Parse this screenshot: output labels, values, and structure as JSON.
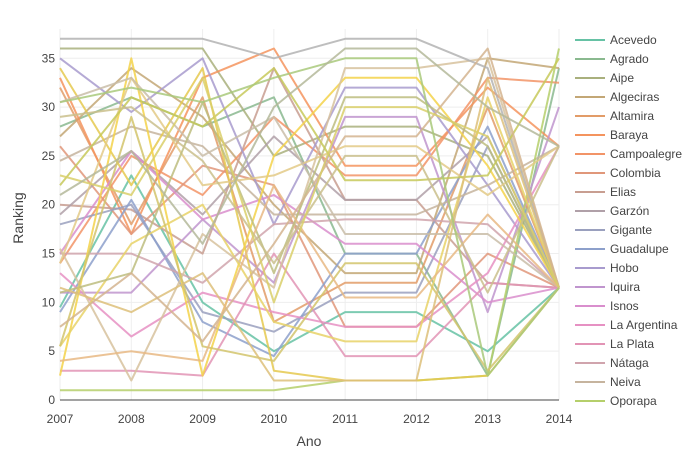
{
  "chart_data": {
    "type": "line",
    "xlabel": "Ano",
    "ylabel": "Ranking",
    "x": [
      2007,
      2008,
      2009,
      2010,
      2011,
      2012,
      2013,
      2014
    ],
    "xlim": [
      2007,
      2014
    ],
    "ylim": [
      0,
      38
    ],
    "yticks": [
      0,
      5,
      10,
      15,
      20,
      25,
      30,
      35
    ],
    "grid": true,
    "legend_position": "right",
    "series": [
      {
        "name": "Acevedo",
        "color": "#66c2a5",
        "values": [
          9.5,
          23,
          10,
          5,
          9,
          9,
          5,
          11.5
        ]
      },
      {
        "name": "Agrado",
        "color": "#8ab98f",
        "values": [
          28,
          31,
          28,
          31,
          15,
          15,
          2.5,
          34
        ]
      },
      {
        "name": "Aipe",
        "color": "#a9b07d",
        "values": [
          36,
          36,
          36,
          25,
          28,
          28,
          25,
          11.5
        ]
      },
      {
        "name": "Algeciras",
        "color": "#c3a776",
        "values": [
          27,
          34,
          29,
          20,
          13,
          13,
          35,
          34
        ]
      },
      {
        "name": "Altamira",
        "color": "#e29c68",
        "values": [
          32,
          18,
          31,
          8,
          12,
          12,
          30,
          11.5
        ]
      },
      {
        "name": "Baraya",
        "color": "#f4945e",
        "values": [
          33,
          17,
          33,
          36,
          24,
          24,
          32,
          26
        ]
      },
      {
        "name": "Campoalegre",
        "color": "#f29467",
        "values": [
          14,
          25,
          21,
          29,
          23,
          23,
          33,
          32.5
        ]
      },
      {
        "name": "Colombia",
        "color": "#e0977a",
        "values": [
          26,
          17,
          24,
          22,
          7.5,
          7.5,
          15,
          11.5
        ]
      },
      {
        "name": "Elias",
        "color": "#c89e91",
        "values": [
          20,
          19.5,
          15,
          34,
          20.5,
          20.5,
          12,
          11.5
        ]
      },
      {
        "name": "Garzón",
        "color": "#b0a0a8",
        "values": [
          19,
          25.5,
          19,
          27,
          20.5,
          20.5,
          27,
          11.5
        ]
      },
      {
        "name": "Gigante",
        "color": "#9aa0be",
        "values": [
          18,
          20,
          9,
          7,
          11,
          11,
          26,
          11.5
        ]
      },
      {
        "name": "Guadalupe",
        "color": "#8da0cb",
        "values": [
          9,
          20.5,
          8,
          4.5,
          15,
          15,
          28,
          11.5
        ]
      },
      {
        "name": "Hobo",
        "color": "#a89bce",
        "values": [
          35,
          29.5,
          35,
          18,
          32,
          32,
          22,
          11.5
        ]
      },
      {
        "name": "Iquira",
        "color": "#c095ce",
        "values": [
          11,
          11,
          18.5,
          12,
          29,
          29,
          9,
          30
        ]
      },
      {
        "name": "Isnos",
        "color": "#d98ecd",
        "values": [
          15,
          25.5,
          18.5,
          21,
          16,
          16,
          10,
          11.5
        ]
      },
      {
        "name": "La Argentina",
        "color": "#e691c3",
        "values": [
          13,
          6.5,
          11,
          9,
          7.5,
          7.5,
          13,
          26
        ]
      },
      {
        "name": "La Plata",
        "color": "#e294b5",
        "values": [
          3,
          3,
          2.5,
          15,
          4.5,
          4.5,
          12,
          11.5
        ]
      },
      {
        "name": "Nátaga",
        "color": "#d0a4ad",
        "values": [
          15,
          15,
          12,
          18,
          18.5,
          18.5,
          18,
          11.5
        ]
      },
      {
        "name": "Neiva",
        "color": "#c6b49e",
        "values": [
          24.5,
          28,
          26,
          19,
          19,
          19,
          22,
          26
        ]
      },
      {
        "name": "Oporapa",
        "color": "#b5cf6b",
        "values": [
          1,
          1,
          1,
          1,
          2,
          2,
          2.5,
          36
        ]
      },
      {
        "name": "",
        "color": "#e5c94f",
        "values": [
          34,
          22,
          34,
          3,
          2,
          2,
          2.5,
          11.5
        ]
      },
      {
        "name": "",
        "color": "#f3d24a",
        "values": [
          2.5,
          35,
          2.5,
          25,
          33,
          33,
          24,
          11.5
        ]
      },
      {
        "name": "",
        "color": "#e8d267",
        "values": [
          5.5,
          16,
          20,
          8,
          6,
          6,
          31,
          11.5
        ]
      },
      {
        "name": "",
        "color": "#e3ca87",
        "values": [
          14,
          33,
          22,
          23,
          26,
          26,
          21,
          26
        ]
      },
      {
        "name": "",
        "color": "#d7c29d",
        "values": [
          15.5,
          2,
          17,
          11.5,
          34,
          34,
          35,
          11.5
        ]
      },
      {
        "name": "",
        "color": "#c9bda8",
        "values": [
          30.5,
          33,
          25,
          29,
          17,
          17,
          17,
          11.5
        ]
      },
      {
        "name": "",
        "color": "#b3b3b3",
        "values": [
          37,
          37,
          37,
          35,
          37,
          37,
          34,
          11.5
        ]
      },
      {
        "name": "",
        "color": "#bdbd7f",
        "values": [
          11,
          13,
          30.5,
          13,
          31,
          31,
          26,
          11.5
        ]
      },
      {
        "name": "",
        "color": "#c7c95a",
        "values": [
          22,
          31,
          28,
          34,
          22.5,
          22.5,
          23,
          35
        ]
      },
      {
        "name": "",
        "color": "#d2c46c",
        "values": [
          5.5,
          29,
          5.5,
          4,
          14,
          14,
          3,
          11.5
        ]
      },
      {
        "name": "",
        "color": "#ddbf7a",
        "values": [
          11.5,
          9,
          13,
          2,
          2,
          2,
          33,
          11.5
        ]
      },
      {
        "name": "",
        "color": "#e8b884",
        "values": [
          4,
          5,
          4,
          22,
          10.5,
          10.5,
          19,
          11.5
        ]
      },
      {
        "name": "",
        "color": "#d4b48f",
        "values": [
          7.5,
          13,
          6,
          16,
          27,
          27,
          36,
          11.5
        ]
      },
      {
        "name": "",
        "color": "#cabf8c",
        "values": [
          29,
          30,
          24.5,
          14,
          25,
          25,
          11,
          26
        ]
      },
      {
        "name": "",
        "color": "#d9cf6a",
        "values": [
          23,
          21,
          33,
          10,
          30,
          30,
          27,
          11.5
        ]
      },
      {
        "name": "",
        "color": "#a9c97b",
        "values": [
          30.5,
          32,
          30.5,
          33,
          35,
          35,
          2.5,
          11.5
        ]
      },
      {
        "name": "",
        "color": "#b4b89a",
        "values": [
          21,
          25.5,
          16,
          30,
          36,
          36,
          30,
          26
        ]
      }
    ]
  }
}
